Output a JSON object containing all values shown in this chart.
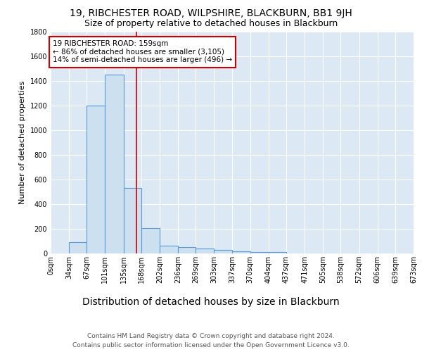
{
  "title1": "19, RIBCHESTER ROAD, WILPSHIRE, BLACKBURN, BB1 9JH",
  "title2": "Size of property relative to detached houses in Blackburn",
  "xlabel": "Distribution of detached houses by size in Blackburn",
  "ylabel": "Number of detached properties",
  "footer": "Contains HM Land Registry data © Crown copyright and database right 2024.\nContains public sector information licensed under the Open Government Licence v3.0.",
  "bin_edges": [
    0,
    34,
    67,
    101,
    135,
    168,
    202,
    236,
    269,
    303,
    337,
    370,
    404,
    437,
    471,
    505,
    538,
    572,
    606,
    639,
    673
  ],
  "bar_heights": [
    0,
    90,
    1200,
    1450,
    530,
    205,
    65,
    50,
    40,
    30,
    20,
    10,
    10,
    0,
    0,
    0,
    0,
    0,
    0,
    0
  ],
  "bar_facecolor": "#cce0f0",
  "bar_edgecolor": "#5b9bd5",
  "property_size": 159,
  "vline_color": "#cc0000",
  "annotation_line1": "19 RIBCHESTER ROAD: 159sqm",
  "annotation_line2": "← 86% of detached houses are smaller (3,105)",
  "annotation_line3": "14% of semi-detached houses are larger (496) →",
  "annotation_boxcolor": "white",
  "annotation_edgecolor": "#cc0000",
  "ylim": [
    0,
    1800
  ],
  "yticks": [
    0,
    200,
    400,
    600,
    800,
    1000,
    1200,
    1400,
    1600,
    1800
  ],
  "bg_color": "#dce8f4",
  "title1_fontsize": 10,
  "title2_fontsize": 9,
  "xlabel_fontsize": 10,
  "ylabel_fontsize": 8,
  "tick_fontsize": 7,
  "footer_fontsize": 6.5,
  "annot_fontsize": 7.5
}
